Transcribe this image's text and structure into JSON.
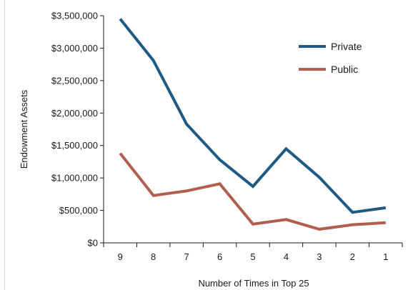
{
  "chart_data": {
    "type": "line",
    "title": "",
    "xlabel": "Number of Times in Top 25",
    "ylabel": "Endowment Assets",
    "categories": [
      "9",
      "8",
      "7",
      "6",
      "5",
      "4",
      "3",
      "2",
      "1"
    ],
    "yticks": [
      "$0",
      "$500,000",
      "$1,000,000",
      "$1,500,000",
      "$2,000,000",
      "$2,500,000",
      "$3,000,000",
      "$3,500,000"
    ],
    "ylim": [
      0,
      3500000
    ],
    "grid": false,
    "legend_position": "top-right",
    "series": [
      {
        "name": "Private",
        "color": "#1f5a85",
        "values": [
          3450000,
          2810000,
          1830000,
          1280000,
          870000,
          1450000,
          1010000,
          470000,
          540000
        ]
      },
      {
        "name": "Public",
        "color": "#b15e4e",
        "values": [
          1380000,
          730000,
          800000,
          910000,
          290000,
          360000,
          210000,
          280000,
          310000
        ]
      }
    ]
  }
}
